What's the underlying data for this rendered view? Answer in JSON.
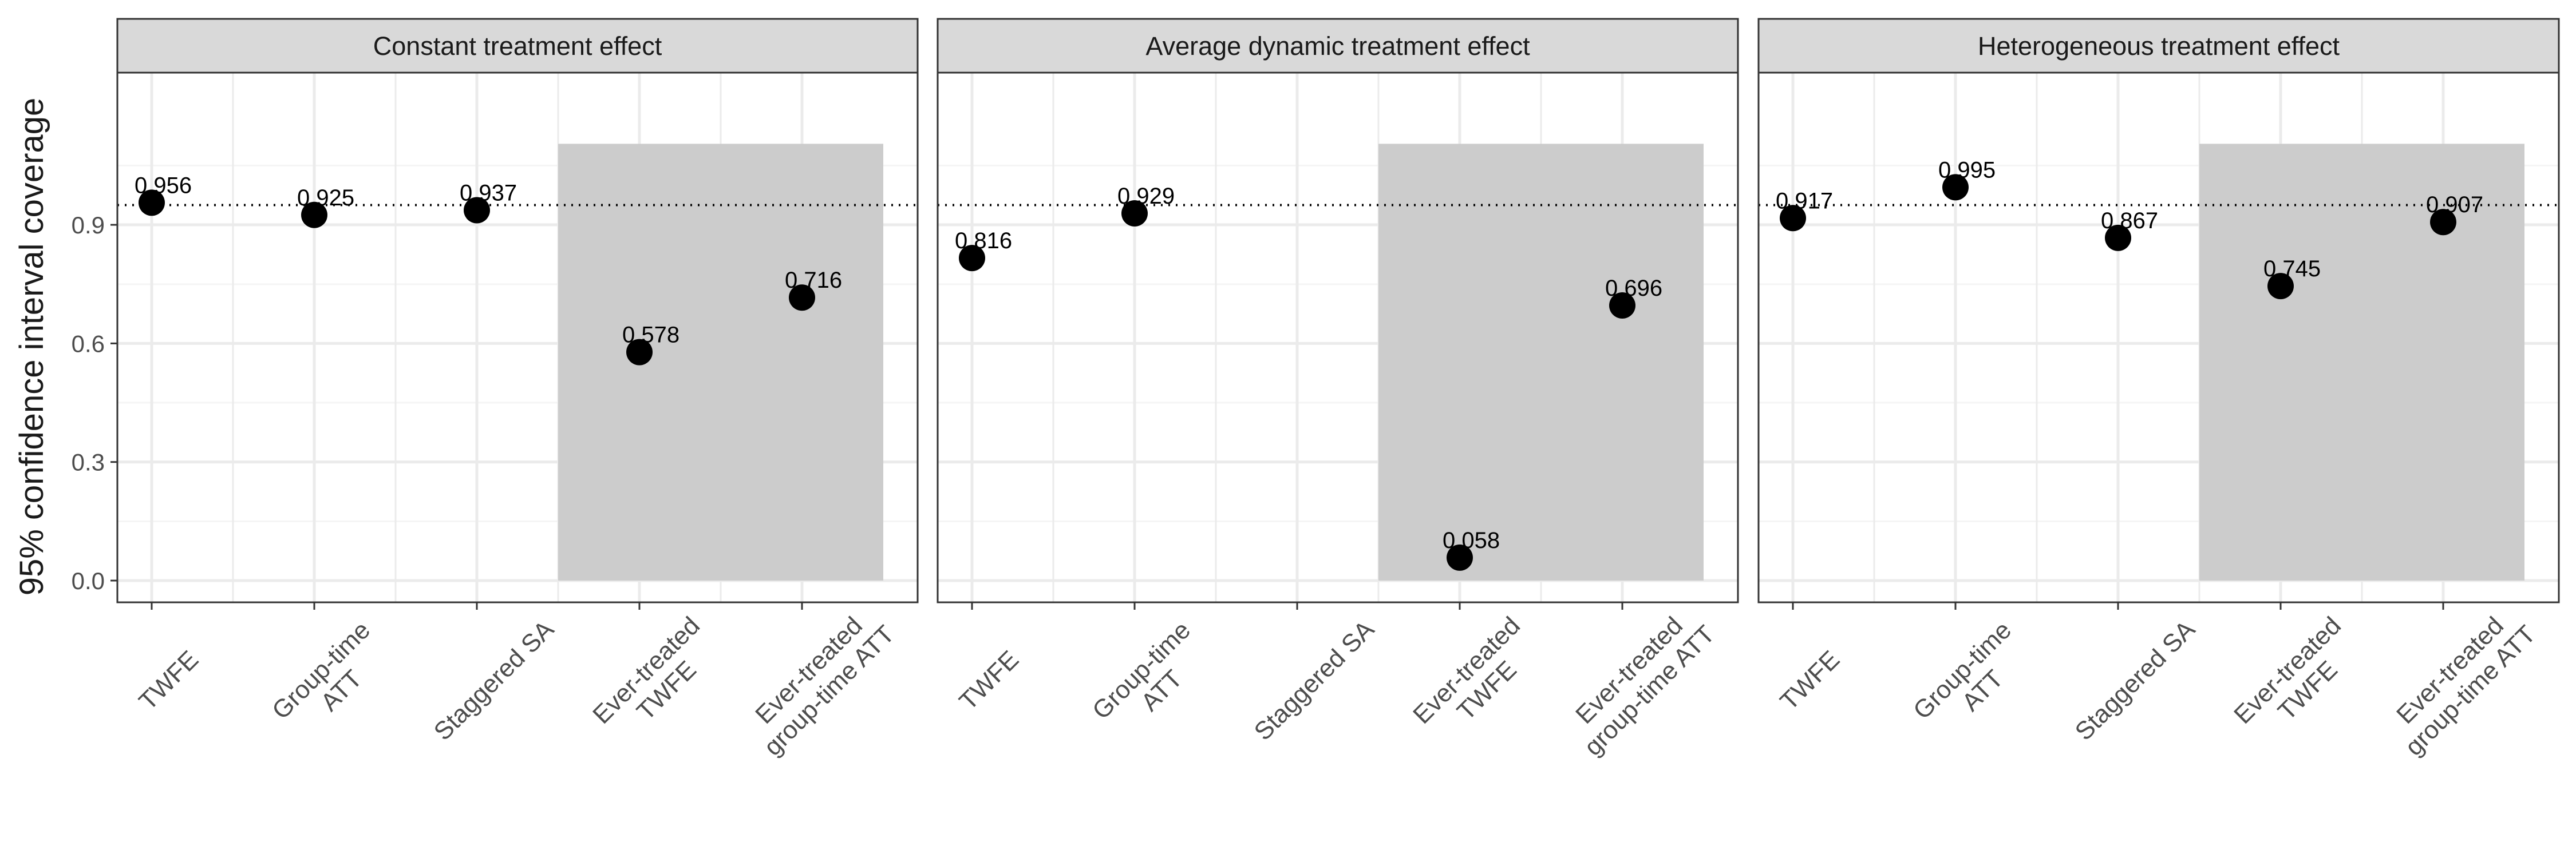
{
  "chart_data": {
    "type": "scatter",
    "ylabel": "95% confidence interval coverage",
    "xlabel": "",
    "ylim": [
      -0.055,
      1.285
    ],
    "y_ticks": [
      "0.0",
      "0.3",
      "0.6",
      "0.9"
    ],
    "y_tick_values": [
      0.0,
      0.3,
      0.6,
      0.9
    ],
    "reference_line": 0.95,
    "grid": true,
    "shaded_region": {
      "from_category": "Ever-treated TWFE",
      "to_category": "Ever-treated group-time ATT",
      "y_range": [
        0,
        1.105
      ]
    },
    "categories": [
      "TWFE",
      "Group-time ATT",
      "Staggered SA",
      "Ever-treated TWFE",
      "Ever-treated group-time ATT"
    ],
    "category_labels": [
      [
        "TWFE"
      ],
      [
        "Group-time",
        "ATT"
      ],
      [
        "Staggered SA"
      ],
      [
        "Ever-treated",
        "TWFE"
      ],
      [
        "Ever-treated",
        "group-time ATT"
      ]
    ],
    "panels": [
      {
        "title": "Constant treatment effect",
        "values": [
          0.956,
          0.925,
          0.937,
          0.578,
          0.716
        ],
        "labels": [
          "0.956",
          "0.925",
          "0.937",
          "0.578",
          "0.716"
        ]
      },
      {
        "title": "Average dynamic treatment effect",
        "values": [
          0.816,
          0.929,
          null,
          0.058,
          0.696
        ],
        "labels": [
          "0.816",
          "0.929",
          "",
          "0.058",
          "0.696"
        ]
      },
      {
        "title": "Heterogeneous treatment effect",
        "values": [
          0.917,
          0.995,
          0.867,
          0.745,
          0.907
        ],
        "labels": [
          "0.917",
          "0.995",
          "0.867",
          "0.745",
          "0.907"
        ]
      }
    ],
    "colors": {
      "point": "#000000",
      "shade": "#cccccc",
      "strip": "#d9d9d9",
      "grid_major": "#ebebeb",
      "grid_minor": "#f5f5f5",
      "border": "#333333"
    }
  }
}
